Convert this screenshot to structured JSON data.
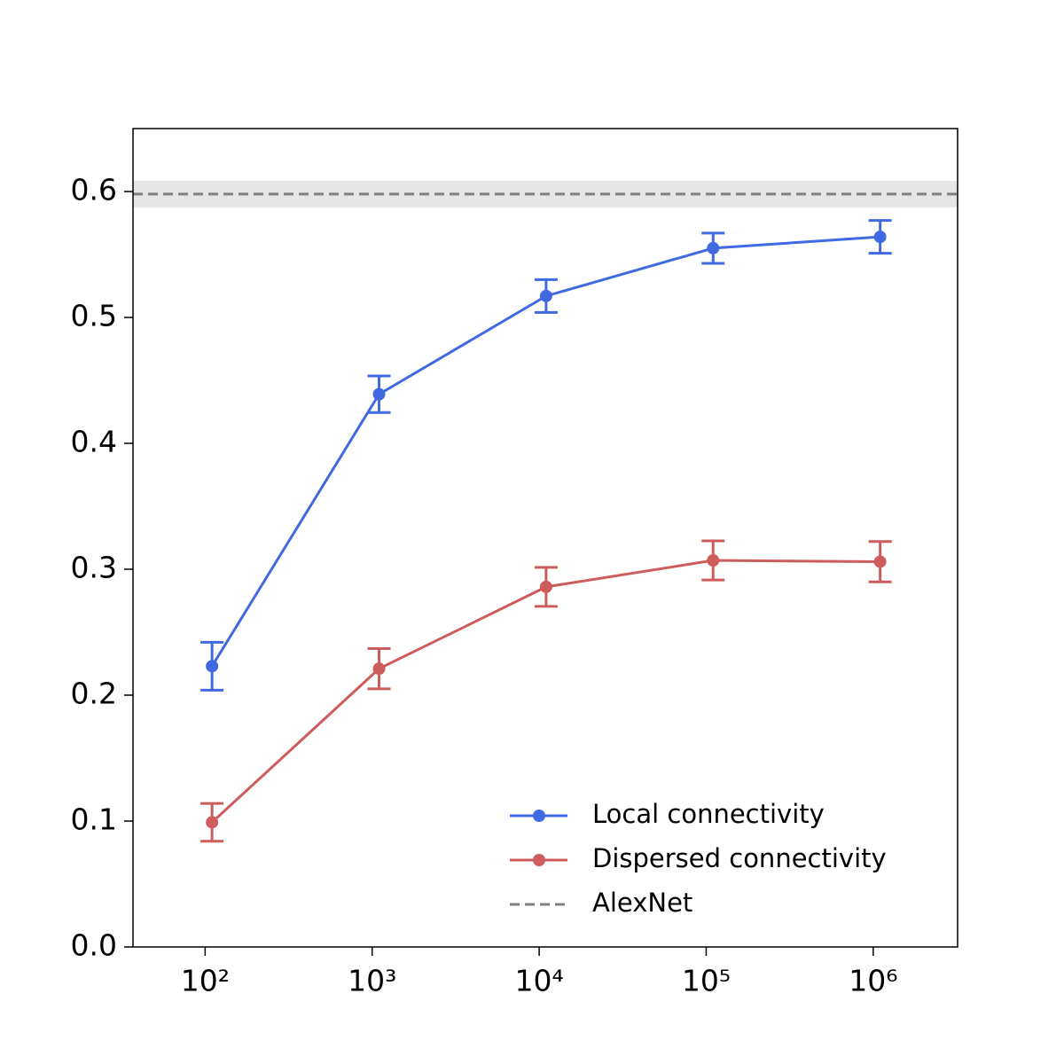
{
  "chart_data": {
    "type": "line",
    "x": [
      110,
      1100,
      11000,
      110000,
      1100000
    ],
    "xlim": [
      37,
      3200000
    ],
    "xscale": "log",
    "xticks": [
      {
        "value": 100,
        "label": "10²"
      },
      {
        "value": 1000,
        "label": "10³"
      },
      {
        "value": 10000,
        "label": "10⁴"
      },
      {
        "value": 100000,
        "label": "10⁵"
      },
      {
        "value": 1000000,
        "label": "10⁶"
      }
    ],
    "ylim": [
      0,
      0.65
    ],
    "yticks": [
      {
        "value": 0,
        "label": "0.0"
      },
      0.1,
      0.2,
      0.3,
      0.4,
      0.5,
      0.6
    ],
    "series": [
      {
        "name": "Local connectivity",
        "color": "#4169e1",
        "values": [
          0.223,
          0.439,
          0.517,
          0.555,
          0.564
        ],
        "errors": [
          0.019,
          0.0145,
          0.013,
          0.012,
          0.013
        ]
      },
      {
        "name": "Dispersed connectivity",
        "color": "#cd5c5c",
        "values": [
          0.099,
          0.221,
          0.286,
          0.307,
          0.306
        ],
        "errors": [
          0.015,
          0.016,
          0.0155,
          0.0155,
          0.016
        ]
      }
    ],
    "reference": {
      "name": "AlexNet",
      "value": 0.598,
      "error": 0.0106,
      "color": "#808080"
    },
    "legend": "lower right"
  }
}
